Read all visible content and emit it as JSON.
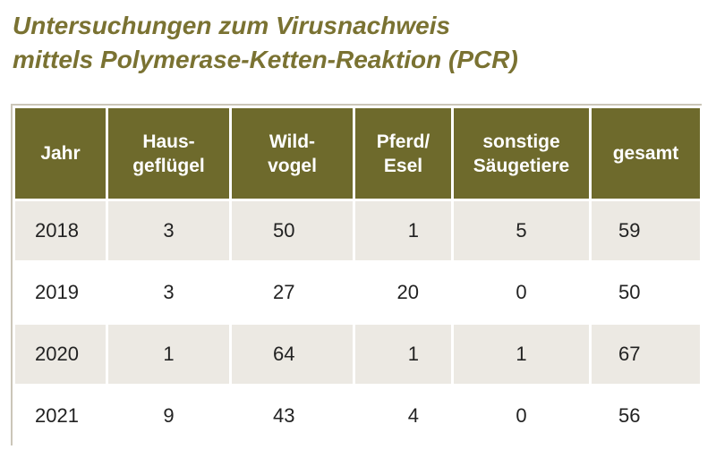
{
  "title": {
    "line1": "Untersuchungen zum Virusnachweis",
    "line2": "mittels Polymerase-Ketten-Reaktion (PCR)"
  },
  "colors": {
    "title": "#7a7232",
    "header_bg": "#6e6a2c",
    "row_shade": "#ece9e3"
  },
  "table": {
    "headers": [
      {
        "line1": "Jahr",
        "line2": ""
      },
      {
        "line1": "Haus-",
        "line2": "geflügel"
      },
      {
        "line1": "Wild-",
        "line2": "vogel"
      },
      {
        "line1": "Pferd/",
        "line2": "Esel"
      },
      {
        "line1": "sonstige",
        "line2": "Säugetiere"
      },
      {
        "line1": "gesamt",
        "line2": ""
      }
    ],
    "rows": [
      {
        "jahr": "2018",
        "hausgefluegel": "3",
        "wildvogel": "50",
        "pferd_esel": "1",
        "saeugetiere": "5",
        "gesamt": "59"
      },
      {
        "jahr": "2019",
        "hausgefluegel": "3",
        "wildvogel": "27",
        "pferd_esel": "20",
        "saeugetiere": "0",
        "gesamt": "50"
      },
      {
        "jahr": "2020",
        "hausgefluegel": "1",
        "wildvogel": "64",
        "pferd_esel": "1",
        "saeugetiere": "1",
        "gesamt": "67"
      },
      {
        "jahr": "2021",
        "hausgefluegel": "9",
        "wildvogel": "43",
        "pferd_esel": "4",
        "saeugetiere": "0",
        "gesamt": "56"
      }
    ]
  }
}
